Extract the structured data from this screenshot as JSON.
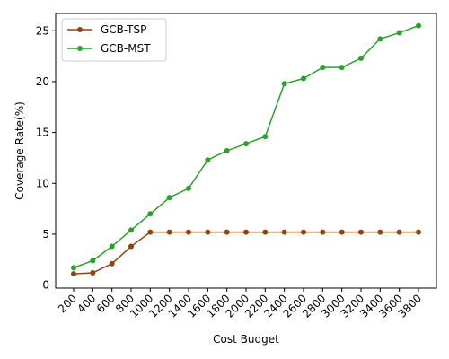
{
  "chart_data": {
    "type": "line",
    "title": "",
    "xlabel": "Cost Budget",
    "ylabel": "Coverage Rate(%)",
    "categories": [
      "200",
      "400",
      "600",
      "800",
      "1000",
      "1200",
      "1400",
      "1600",
      "1800",
      "2000",
      "2200",
      "2400",
      "2600",
      "2800",
      "3000",
      "3200",
      "3400",
      "3600",
      "3800"
    ],
    "yticks": [
      "0",
      "5",
      "10",
      "15",
      "20",
      "25"
    ],
    "ylim": [
      -0.3,
      26.7
    ],
    "grid": false,
    "legend_position": "upper-left",
    "series": [
      {
        "name": "GCB-TSP",
        "color": "#8b4513",
        "values": [
          1.1,
          1.2,
          2.1,
          3.8,
          5.2,
          5.2,
          5.2,
          5.2,
          5.2,
          5.2,
          5.2,
          5.2,
          5.2,
          5.2,
          5.2,
          5.2,
          5.2,
          5.2,
          5.2
        ]
      },
      {
        "name": "GCB-MST",
        "color": "#2ca02c",
        "values": [
          1.7,
          2.4,
          3.8,
          5.4,
          7.0,
          8.6,
          9.5,
          12.3,
          13.2,
          13.9,
          14.6,
          19.8,
          20.3,
          21.4,
          21.4,
          22.3,
          24.2,
          24.8,
          25.5
        ]
      }
    ]
  }
}
